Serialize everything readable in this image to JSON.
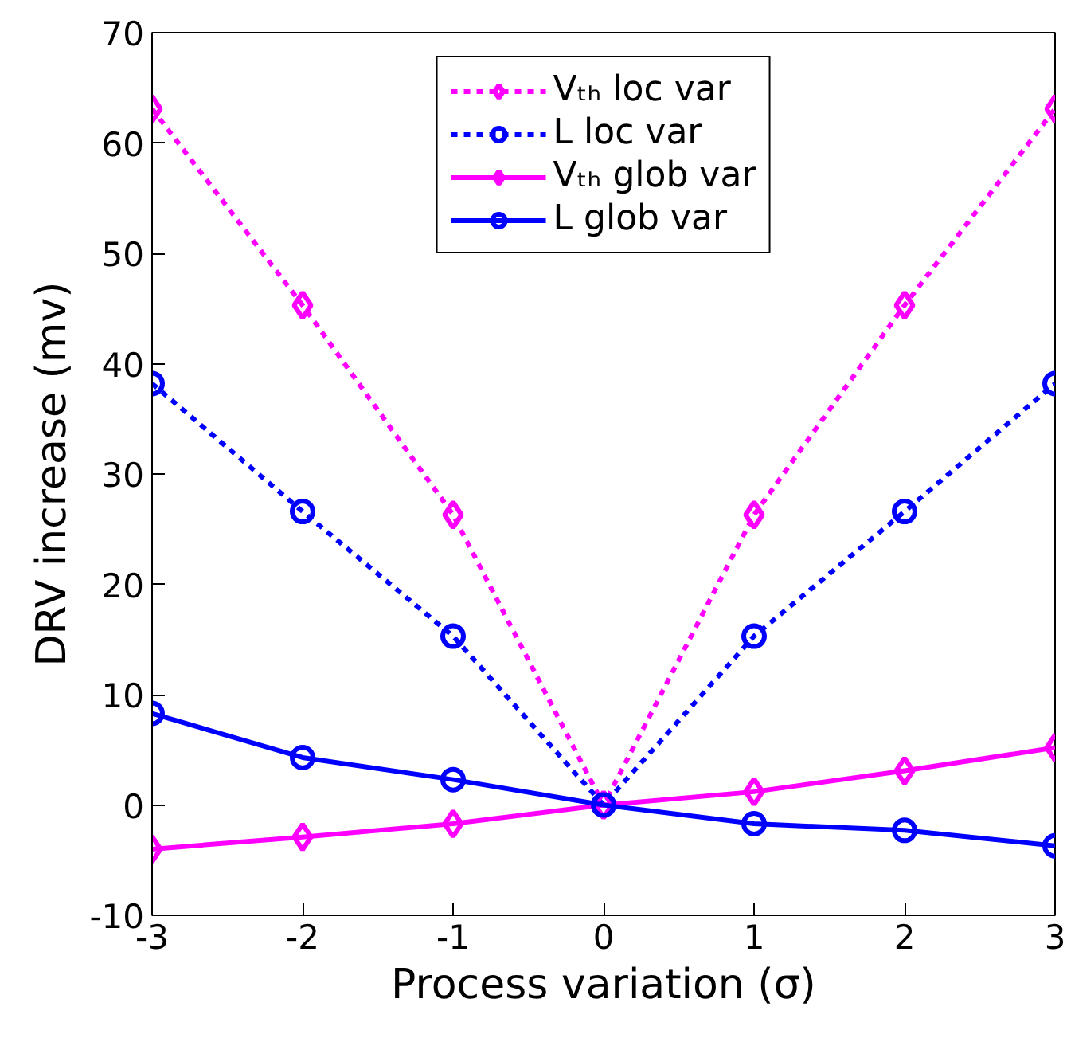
{
  "chart_data": {
    "type": "line",
    "xlabel": "Process variation (σ)",
    "ylabel": "DRV increase (mv)",
    "x": [
      -3,
      -2,
      -1,
      0,
      1,
      2,
      3
    ],
    "xlim": [
      -3,
      3
    ],
    "xticks": [
      -3,
      -2,
      -1,
      0,
      1,
      2,
      3
    ],
    "ylim": [
      -10,
      70
    ],
    "yticks": [
      -10,
      0,
      10,
      20,
      30,
      40,
      50,
      60,
      70
    ],
    "grid": false,
    "legend": "top",
    "series": [
      {
        "name": "Vₜₕ loc var",
        "color": "#ff00ff",
        "marker": "diamond",
        "line_style": "dotted",
        "values": [
          63.1,
          45.3,
          26.3,
          0,
          26.3,
          45.3,
          63.1
        ]
      },
      {
        "name": "L loc var",
        "color": "#0000ff",
        "marker": "circle",
        "line_style": "dotted",
        "values": [
          38.2,
          26.6,
          15.3,
          0,
          15.3,
          26.6,
          38.2
        ]
      },
      {
        "name": "Vₜₕ glob var",
        "color": "#ff00ff",
        "marker": "diamond",
        "line_style": "solid",
        "values": [
          -4.0,
          -2.9,
          -1.7,
          0,
          1.2,
          3.1,
          5.2
        ]
      },
      {
        "name": "L glob var",
        "color": "#0000ff",
        "marker": "circle",
        "line_style": "solid",
        "values": [
          8.3,
          4.3,
          2.3,
          0,
          -1.7,
          -2.3,
          -3.7
        ]
      }
    ]
  }
}
